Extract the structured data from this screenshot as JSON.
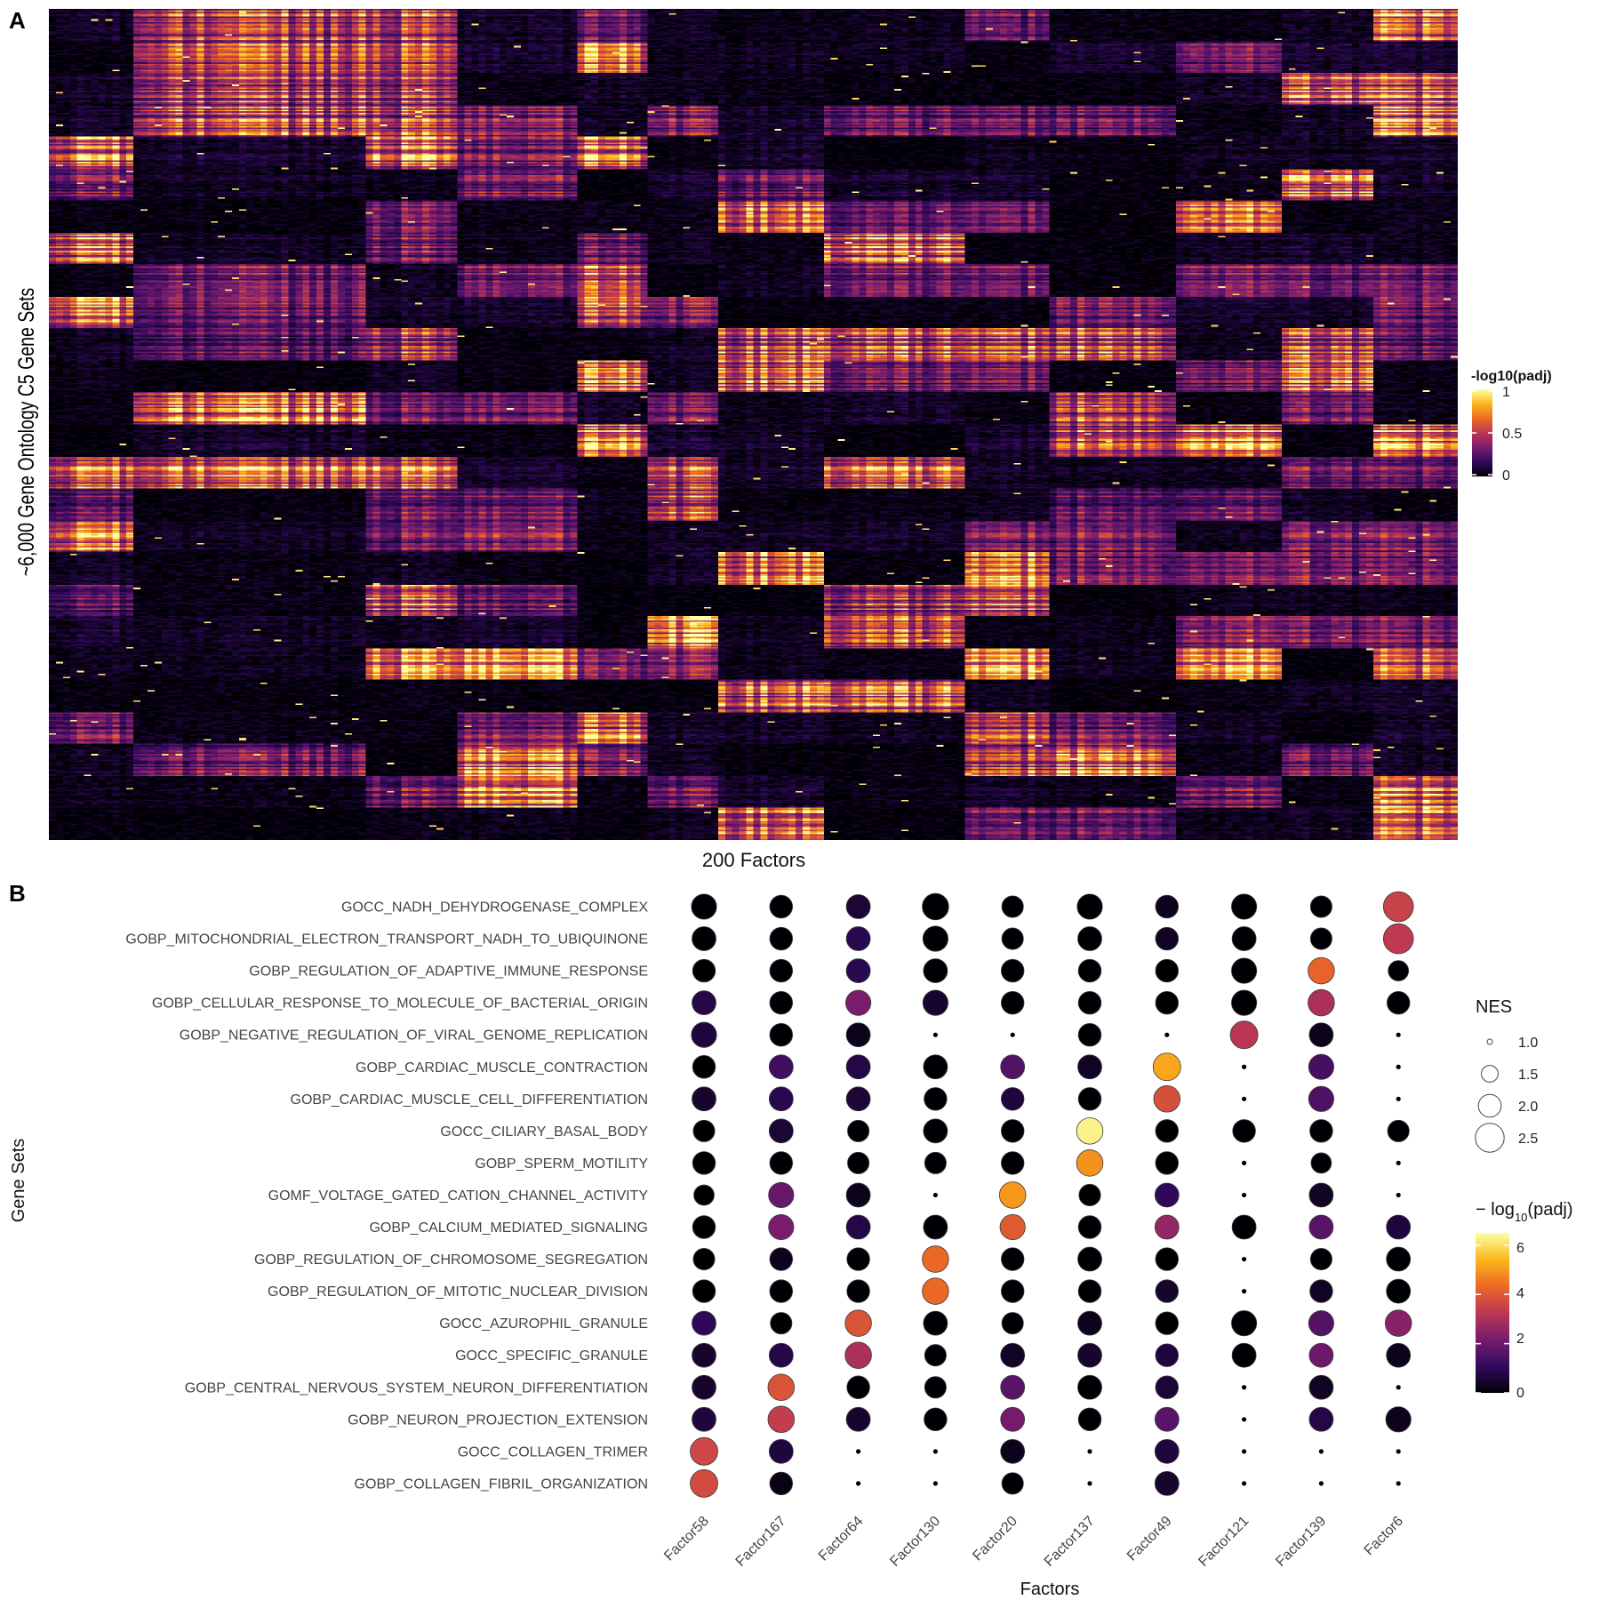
{
  "panel_a": {
    "letter": "A",
    "ylabel": "~6,000 Gene Ontology C5 Gene Sets",
    "xlabel": "200 Factors",
    "legend_title": "-log10(padj)",
    "legend_ticks": [
      "1",
      "0.5",
      "0"
    ],
    "colormap": [
      "#000004",
      "#320a5e",
      "#781c6d",
      "#bc3754",
      "#ed6925",
      "#fbb61a",
      "#fcffa4"
    ]
  },
  "panel_b": {
    "letter": "B",
    "ylabel": "Gene Sets",
    "xlabel": "Factors",
    "size_legend_title": "NES",
    "size_legend_labels": [
      "1.0",
      "1.5",
      "2.0",
      "2.5"
    ],
    "color_legend_title_prefix": "− log",
    "color_legend_title_sub": "10",
    "color_legend_title_suffix": "(padj)",
    "color_legend_ticks": [
      "6",
      "4",
      "2",
      "0"
    ]
  },
  "chart_data": [
    {
      "type": "heatmap",
      "title": "",
      "xlabel": "200 Factors",
      "ylabel": "~6,000 Gene Ontology C5 Gene Sets",
      "n_columns": 200,
      "n_rows": 6000,
      "color_scale": "inferno",
      "color_range": [
        0,
        1
      ],
      "legend_title": "-log10(padj)",
      "legend_ticks": [
        1,
        0.5,
        0
      ],
      "legend_placement": "right"
    },
    {
      "type": "scatter",
      "title": "",
      "xlabel": "Factors",
      "ylabel": "Gene Sets",
      "factors": [
        "Factor58",
        "Factor167",
        "Factor64",
        "Factor130",
        "Factor20",
        "Factor137",
        "Factor49",
        "Factor121",
        "Factor139",
        "Factor6"
      ],
      "gene_sets": [
        "GOCC_NADH_DEHYDROGENASE_COMPLEX",
        "GOBP_MITOCHONDRIAL_ELECTRON_TRANSPORT_NADH_TO_UBIQUINONE",
        "GOBP_REGULATION_OF_ADAPTIVE_IMMUNE_RESPONSE",
        "GOBP_CELLULAR_RESPONSE_TO_MOLECULE_OF_BACTERIAL_ORIGIN",
        "GOBP_NEGATIVE_REGULATION_OF_VIRAL_GENOME_REPLICATION",
        "GOBP_CARDIAC_MUSCLE_CONTRACTION",
        "GOBP_CARDIAC_MUSCLE_CELL_DIFFERENTIATION",
        "GOCC_CILIARY_BASAL_BODY",
        "GOBP_SPERM_MOTILITY",
        "GOMF_VOLTAGE_GATED_CATION_CHANNEL_ACTIVITY",
        "GOBP_CALCIUM_MEDIATED_SIGNALING",
        "GOBP_REGULATION_OF_CHROMOSOME_SEGREGATION",
        "GOBP_REGULATION_OF_MITOTIC_NUCLEAR_DIVISION",
        "GOCC_AZUROPHIL_GRANULE",
        "GOCC_SPECIFIC_GRANULE",
        "GOBP_CENTRAL_NERVOUS_SYSTEM_NEURON_DIFFERENTIATION",
        "GOBP_NEURON_PROJECTION_EXTENSION",
        "GOCC_COLLAGEN_TRIMER",
        "GOBP_COLLAGEN_FIBRIL_ORGANIZATION"
      ],
      "nes": [
        [
          2.2,
          2.0,
          2.1,
          2.3,
          1.9,
          2.2,
          2.0,
          2.2,
          1.9,
          2.6
        ],
        [
          2.1,
          2.0,
          2.1,
          2.2,
          1.9,
          2.1,
          2.0,
          2.1,
          1.9,
          2.6
        ],
        [
          2.0,
          2.0,
          2.1,
          2.1,
          2.0,
          2.0,
          2.0,
          2.2,
          2.3,
          1.8
        ],
        [
          2.1,
          2.0,
          2.2,
          2.2,
          2.0,
          2.0,
          2.0,
          2.2,
          2.3,
          2.0
        ],
        [
          2.2,
          2.0,
          2.1,
          0.8,
          0.8,
          2.0,
          0.8,
          2.4,
          2.1,
          0.8
        ],
        [
          2.0,
          2.1,
          2.1,
          2.1,
          2.1,
          2.1,
          2.4,
          0.8,
          2.2,
          0.8
        ],
        [
          2.1,
          2.1,
          2.1,
          2.0,
          2.0,
          2.0,
          2.3,
          0.8,
          2.2,
          0.8
        ],
        [
          1.9,
          2.1,
          1.9,
          2.1,
          2.0,
          2.3,
          2.0,
          2.0,
          2.0,
          1.9
        ],
        [
          2.0,
          2.0,
          1.9,
          1.9,
          2.0,
          2.3,
          2.0,
          0.8,
          1.8,
          0.8
        ],
        [
          1.8,
          2.2,
          2.1,
          0.8,
          2.3,
          1.9,
          2.1,
          0.8,
          2.1,
          0.8
        ],
        [
          2.0,
          2.2,
          2.1,
          2.1,
          2.2,
          2.0,
          2.1,
          2.1,
          2.1,
          2.1
        ],
        [
          1.9,
          2.0,
          2.0,
          2.3,
          2.0,
          2.1,
          2.0,
          0.8,
          1.9,
          2.1
        ],
        [
          2.0,
          2.0,
          2.0,
          2.3,
          2.0,
          2.0,
          2.0,
          0.8,
          2.0,
          2.1
        ],
        [
          2.1,
          1.9,
          2.3,
          2.1,
          1.9,
          2.1,
          2.0,
          2.2,
          2.2,
          2.3
        ],
        [
          2.1,
          2.1,
          2.3,
          1.9,
          2.1,
          2.1,
          2.0,
          2.1,
          2.1,
          2.1
        ],
        [
          2.1,
          2.3,
          2.0,
          1.9,
          2.1,
          2.1,
          2.0,
          0.8,
          2.1,
          0.8
        ],
        [
          2.1,
          2.3,
          2.1,
          2.0,
          2.1,
          2.0,
          2.1,
          0.8,
          2.1,
          2.2
        ],
        [
          2.4,
          2.1,
          0.8,
          0.8,
          2.1,
          0.8,
          2.1,
          0.8,
          0.8,
          0.8
        ],
        [
          2.4,
          2.0,
          0.8,
          0.8,
          1.9,
          0.8,
          2.1,
          0.8,
          0.8,
          0.8
        ]
      ],
      "neg_log10_padj": [
        [
          0.0,
          0.0,
          0.6,
          0.0,
          0.0,
          0.0,
          0.3,
          0.0,
          0.0,
          3.5
        ],
        [
          0.0,
          0.0,
          0.9,
          0.0,
          0.0,
          0.0,
          0.4,
          0.0,
          0.0,
          3.3
        ],
        [
          0.0,
          0.0,
          0.9,
          0.0,
          0.0,
          0.0,
          0.0,
          0.0,
          4.2,
          0.0
        ],
        [
          0.8,
          0.0,
          2.2,
          0.5,
          0.0,
          0.0,
          0.0,
          0.0,
          3.0,
          0.0
        ],
        [
          0.7,
          0.0,
          0.3,
          0.0,
          0.0,
          0.0,
          0.0,
          3.2,
          0.3,
          0.0
        ],
        [
          0.0,
          1.3,
          0.8,
          0.0,
          1.6,
          0.4,
          5.2,
          0.0,
          1.4,
          0.0
        ],
        [
          0.5,
          0.9,
          0.6,
          0.0,
          0.7,
          0.0,
          3.8,
          0.0,
          1.5,
          0.0
        ],
        [
          0.0,
          0.6,
          0.0,
          0.0,
          0.0,
          6.3,
          0.0,
          0.0,
          0.0,
          0.0
        ],
        [
          0.0,
          0.0,
          0.0,
          0.0,
          0.0,
          4.9,
          0.0,
          0.0,
          0.0,
          0.0
        ],
        [
          0.0,
          1.9,
          0.3,
          0.0,
          5.0,
          0.0,
          1.0,
          0.0,
          0.4,
          0.0
        ],
        [
          0.0,
          2.2,
          0.8,
          0.0,
          4.0,
          0.0,
          2.6,
          0.0,
          1.7,
          0.7
        ],
        [
          0.0,
          0.3,
          0.0,
          4.3,
          0.0,
          0.0,
          0.0,
          0.0,
          0.0,
          0.0
        ],
        [
          0.0,
          0.0,
          0.0,
          4.3,
          0.0,
          0.0,
          0.5,
          0.0,
          0.4,
          0.0
        ],
        [
          1.0,
          0.0,
          3.9,
          0.0,
          0.0,
          0.3,
          0.0,
          0.0,
          1.6,
          2.4
        ],
        [
          0.5,
          0.8,
          3.0,
          0.0,
          0.4,
          0.5,
          0.7,
          0.0,
          2.0,
          0.3
        ],
        [
          0.5,
          3.9,
          0.0,
          0.0,
          1.7,
          0.0,
          0.6,
          0.0,
          0.4,
          0.0
        ],
        [
          0.7,
          3.4,
          0.5,
          0.0,
          2.1,
          0.0,
          1.7,
          0.0,
          0.8,
          0.3
        ],
        [
          3.6,
          0.7,
          0.0,
          0.0,
          0.3,
          0.0,
          0.7,
          0.0,
          0.0,
          0.0
        ],
        [
          3.7,
          0.2,
          0.0,
          0.0,
          0.0,
          0.0,
          0.5,
          0.0,
          0.0,
          0.0
        ]
      ],
      "size_legend_title": "NES",
      "size_legend_values": [
        1.0,
        1.5,
        2.0,
        2.5
      ],
      "color_legend_title": "− log10(padj)",
      "color_range": [
        0,
        6.5
      ],
      "color_legend_ticks": [
        0,
        2,
        4,
        6
      ],
      "legend_placement": "right"
    }
  ]
}
